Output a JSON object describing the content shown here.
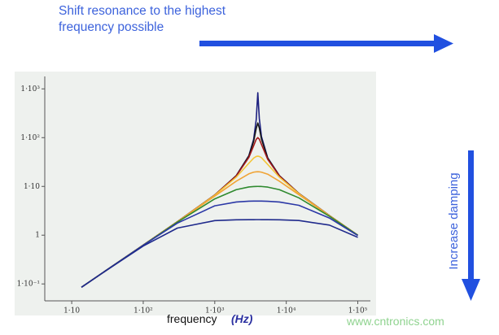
{
  "annotations": {
    "top_text": [
      "Shift resonance to the highest",
      "frequency possible"
    ],
    "side_text": "Increase damping",
    "watermark": "www.cntronics.com"
  },
  "chart_data": {
    "type": "line",
    "x_label": "frequency",
    "x_unit": "(Hz)",
    "x": [
      13.7,
      30,
      100,
      300,
      1000,
      2000,
      3000,
      3500,
      3800,
      4000,
      4200,
      4500,
      5500,
      8000,
      15000,
      40000,
      100000
    ],
    "series": [
      {
        "color": "#1c2080",
        "values": [
          0.0856,
          0.1875,
          0.626,
          1.886,
          6.67,
          16.67,
          42.8,
          92.9,
          233.8,
          833,
          244.7,
          105,
          38.6,
          16.67,
          7.18,
          2.53,
          1.0
        ]
      },
      {
        "color": "#151515",
        "values": [
          0.0856,
          0.1875,
          0.626,
          1.886,
          6.66,
          16.61,
          41.9,
          84.7,
          154.5,
          200,
          157.7,
          93.6,
          37.9,
          16.61,
          7.17,
          2.53,
          1.0
        ]
      },
      {
        "color": "#a3191b",
        "values": [
          0.0856,
          0.1875,
          0.626,
          1.886,
          6.65,
          16.44,
          39.4,
          68.3,
          92.5,
          100,
          93.2,
          72.7,
          36.0,
          16.44,
          7.16,
          2.52,
          1.0
        ]
      },
      {
        "color": "#f3c63a",
        "values": [
          0.0856,
          0.1875,
          0.626,
          1.884,
          6.58,
          15.47,
          29.9,
          38.1,
          41.1,
          41.7,
          41.1,
          38.8,
          28.3,
          15.47,
          7.07,
          2.52,
          1.0
        ]
      },
      {
        "color": "#f0a436",
        "values": [
          0.0856,
          0.1875,
          0.625,
          1.878,
          6.32,
          12.8,
          18.1,
          19.6,
          19.93,
          20,
          19.94,
          19.6,
          17.8,
          12.8,
          6.76,
          2.51,
          1.0
        ]
      },
      {
        "color": "#2f8a2f",
        "values": [
          0.0856,
          0.1875,
          0.6244,
          1.854,
          5.55,
          8.58,
          9.74,
          9.94,
          9.99,
          10,
          9.99,
          9.96,
          9.68,
          8.58,
          5.83,
          2.45,
          0.997
        ]
      },
      {
        "color": "#2b38a6",
        "values": [
          0.0856,
          0.1874,
          0.621,
          1.765,
          4.0,
          4.79,
          4.97,
          4.99,
          5.0,
          5,
          5.0,
          4.99,
          4.96,
          4.79,
          4.1,
          2.25,
          0.982
        ]
      },
      {
        "color": "#1f2a8c",
        "values": [
          0.0855,
          0.1867,
          0.599,
          1.398,
          1.99,
          2.07,
          2.08,
          2.08,
          2.083,
          2.083,
          2.083,
          2.08,
          2.08,
          2.07,
          2.0,
          1.61,
          0.903
        ]
      }
    ],
    "xlim": [
      4.2,
      150000
    ],
    "ylim": [
      0.045,
      1800
    ],
    "log_x": true,
    "log_y": true,
    "xticks": [
      {
        "value": 10,
        "label": "1·10"
      },
      {
        "value": 100,
        "label": "1·10²"
      },
      {
        "value": 1000,
        "label": "1·10³"
      },
      {
        "value": 10000,
        "label": "1·10⁴"
      },
      {
        "value": 100000,
        "label": "1·10⁵"
      }
    ],
    "yticks": [
      {
        "value": 0.1,
        "label": "1·10⁻¹"
      },
      1,
      {
        "value": 10,
        "label": "1·10"
      },
      {
        "value": 100,
        "label": "1·10²"
      },
      {
        "value": 1000,
        "label": "1·10³"
      }
    ]
  }
}
